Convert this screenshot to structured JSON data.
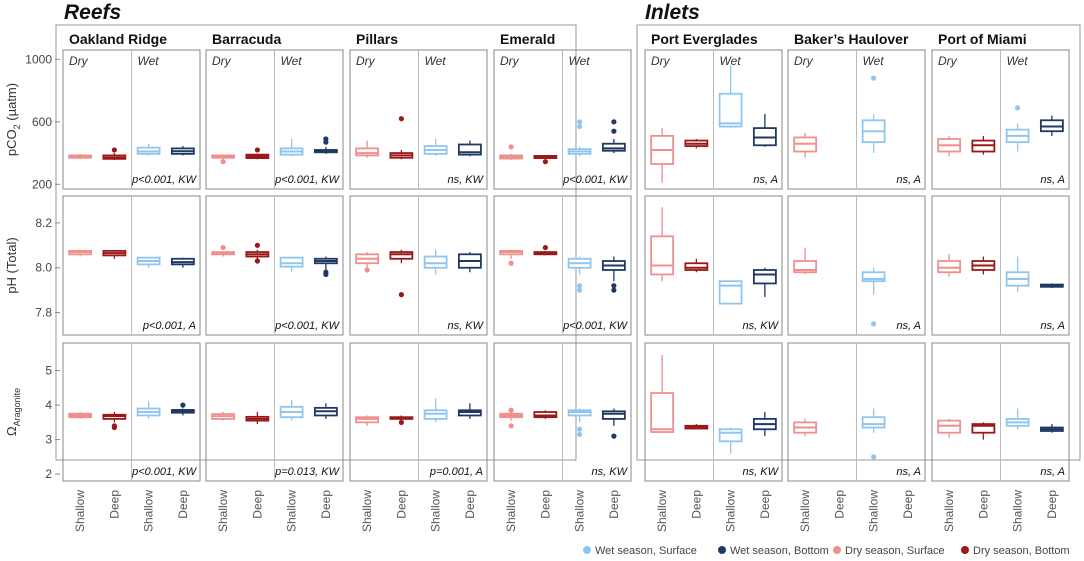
{
  "chart_data": {
    "type": "boxplot",
    "groups": [
      {
        "label": "Reefs",
        "sites": [
          "Oakland Ridge",
          "Barracuda",
          "Pillars",
          "Emerald"
        ]
      },
      {
        "label": "Inlets",
        "sites": [
          "Port Everglades",
          "Baker’s Haulover",
          "Port of Miami"
        ]
      }
    ],
    "seasons": [
      "Dry",
      "Wet"
    ],
    "categories": [
      "Shallow",
      "Deep",
      "Shallow",
      "Deep"
    ],
    "series": [
      {
        "name": "Wet season, Surface",
        "color": "#8fc6f0"
      },
      {
        "name": "Wet season, Bottom",
        "color": "#1f3864"
      },
      {
        "name": "Dry season, Surface",
        "color": "#f0908e"
      },
      {
        "name": "Dry season, Bottom",
        "color": "#9b1818"
      }
    ],
    "rows": [
      {
        "key": "pco2",
        "ylabel_main": "pCO",
        "ylabel_sub": "2",
        "ylabel_tail": " (µatm)",
        "ylim": [
          170,
          1060
        ],
        "ticks": [
          "200",
          "600",
          "1000"
        ],
        "tick_values": [
          200,
          600,
          1000
        ],
        "stats": [
          "p<0.001, KW",
          "p<0.001, KW",
          "ns, KW",
          "p<0.001, KW",
          "ns, A",
          "ns, A",
          "ns, A"
        ],
        "boxes": [
          [
            [
              360,
              370,
              378,
              385,
              395,
              []
            ],
            [
              355,
              363,
              372,
              385,
              400,
              [
                420
              ]
            ],
            [
              385,
              395,
              410,
              435,
              460,
              []
            ],
            [
              385,
              395,
              412,
              430,
              445,
              []
            ]
          ],
          [
            [
              360,
              370,
              378,
              385,
              390,
              [
                345
              ]
            ],
            [
              360,
              368,
              378,
              390,
              395,
              [
                420
              ]
            ],
            [
              380,
              390,
              410,
              430,
              490,
              []
            ],
            [
              395,
              405,
              415,
              420,
              440,
              [
                470,
                490
              ]
            ]
          ],
          [
            [
              370,
              385,
              400,
              430,
              480,
              []
            ],
            [
              360,
              370,
              385,
              400,
              420,
              [
                620
              ]
            ],
            [
              380,
              395,
              420,
              445,
              490,
              []
            ],
            [
              380,
              390,
              405,
              455,
              480,
              []
            ]
          ],
          [
            [
              355,
              365,
              375,
              385,
              395,
              [
                440
              ]
            ],
            [
              360,
              368,
              375,
              382,
              385,
              [
                345
              ]
            ],
            [
              380,
              395,
              410,
              425,
              440,
              [
                570,
                600
              ]
            ],
            [
              400,
              415,
              430,
              460,
              490,
              [
                540,
                600
              ]
            ]
          ],
          [
            [
              210,
              330,
              420,
              510,
              560,
              []
            ],
            [
              430,
              445,
              460,
              480,
              490,
              []
            ],
            [
              560,
              570,
              590,
              780,
              960,
              []
            ],
            [
              440,
              450,
              500,
              560,
              650,
              []
            ],
            null
          ],
          [
            [
              370,
              410,
              460,
              500,
              530,
              []
            ],
            null,
            [
              400,
              470,
              540,
              610,
              650,
              [
                880
              ]
            ],
            null
          ],
          [
            [
              380,
              410,
              450,
              490,
              510,
              []
            ],
            [
              390,
              410,
              450,
              480,
              510,
              []
            ],
            [
              410,
              470,
              510,
              550,
              590,
              [
                690
              ]
            ],
            [
              510,
              540,
              570,
              610,
              640,
              []
            ]
          ]
        ]
      },
      {
        "key": "ph",
        "ylabel_main": "pH (Total)",
        "ylabel_sub": "",
        "ylabel_tail": "",
        "ylim": [
          7.7,
          8.32
        ],
        "ticks": [
          "7.8",
          "8.0",
          "8.2"
        ],
        "tick_values": [
          7.8,
          8.0,
          8.2
        ],
        "stats": [
          "p<0.001, A",
          "p<0.001, KW",
          "ns, KW",
          "p<0.001, KW",
          "ns, KW",
          "ns, A",
          "ns, A"
        ],
        "boxes": [
          [
            [
              8.05,
              8.06,
              8.07,
              8.075,
              8.08,
              []
            ],
            [
              8.04,
              8.055,
              8.065,
              8.075,
              8.08,
              []
            ],
            [
              8.0,
              8.015,
              8.03,
              8.045,
              8.05,
              []
            ],
            [
              8.0,
              8.015,
              8.025,
              8.04,
              8.045,
              []
            ]
          ],
          [
            [
              8.05,
              8.06,
              8.065,
              8.07,
              8.07,
              [
                8.09
              ]
            ],
            [
              8.04,
              8.05,
              8.06,
              8.07,
              8.08,
              [
                8.03,
                8.1
              ]
            ],
            [
              7.98,
              8.005,
              8.02,
              8.045,
              8.05,
              []
            ],
            [
              7.99,
              8.02,
              8.03,
              8.04,
              8.05,
              [
                7.97,
                7.98
              ]
            ]
          ],
          [
            [
              8.0,
              8.02,
              8.04,
              8.06,
              8.07,
              [
                7.99
              ]
            ],
            [
              8.02,
              8.04,
              8.06,
              8.07,
              8.08,
              [
                7.88
              ]
            ],
            [
              7.97,
              8.0,
              8.02,
              8.05,
              8.08,
              []
            ],
            [
              7.98,
              8.0,
              8.03,
              8.06,
              8.07,
              []
            ]
          ],
          [
            [
              8.04,
              8.06,
              8.07,
              8.075,
              8.08,
              [
                8.02
              ]
            ],
            [
              8.055,
              8.06,
              8.065,
              8.07,
              8.075,
              [
                8.09
              ]
            ],
            [
              7.97,
              8.0,
              8.02,
              8.04,
              8.05,
              [
                7.9,
                7.92
              ]
            ],
            [
              7.94,
              7.99,
              8.01,
              8.03,
              8.05,
              [
                7.9,
                7.92
              ]
            ]
          ],
          [
            [
              7.94,
              7.97,
              8.01,
              8.14,
              8.27,
              []
            ],
            [
              7.98,
              7.99,
              8.0,
              8.02,
              8.04,
              []
            ],
            [
              7.9,
              7.84,
              7.92,
              7.94,
              7.94,
              []
            ],
            [
              7.87,
              7.93,
              7.97,
              7.99,
              8.0,
              []
            ]
          ],
          [
            [
              7.97,
              7.98,
              7.99,
              8.03,
              8.09,
              []
            ],
            null,
            [
              7.88,
              7.94,
              7.95,
              7.98,
              8.0,
              [
                7.75
              ]
            ],
            null
          ],
          [
            [
              7.96,
              7.98,
              8.0,
              8.03,
              8.06,
              []
            ],
            [
              7.97,
              7.99,
              8.01,
              8.03,
              8.05,
              []
            ],
            [
              7.89,
              7.92,
              7.95,
              7.98,
              8.05,
              []
            ],
            [
              7.91,
              7.915,
              7.92,
              7.925,
              7.93,
              []
            ]
          ]
        ]
      },
      {
        "key": "omega",
        "ylabel_main": "Ω",
        "ylabel_sub": "Aragonite",
        "ylabel_tail": "",
        "ylim": [
          1.8,
          5.8
        ],
        "ticks": [
          "2",
          "3",
          "4",
          "5"
        ],
        "tick_values": [
          2,
          3,
          4,
          5
        ],
        "stats": [
          "p<0.001, KW",
          "p=0.013, KW",
          "p=0.001, A",
          "ns, KW",
          "ns, KW",
          "ns, A",
          "ns, A"
        ],
        "boxes": [
          [
            [
              3.6,
              3.65,
              3.7,
              3.75,
              3.8,
              []
            ],
            [
              3.5,
              3.6,
              3.68,
              3.72,
              3.8,
              [
                3.4,
                3.35
              ]
            ],
            [
              3.6,
              3.7,
              3.8,
              3.9,
              4.1,
              []
            ],
            [
              3.7,
              3.78,
              3.82,
              3.86,
              3.9,
              [
                4.0
              ]
            ]
          ],
          [
            [
              3.55,
              3.6,
              3.68,
              3.74,
              3.8,
              []
            ],
            [
              3.45,
              3.55,
              3.6,
              3.66,
              3.8,
              []
            ],
            [
              3.55,
              3.65,
              3.8,
              3.95,
              4.15,
              []
            ],
            [
              3.6,
              3.7,
              3.82,
              3.92,
              4.05,
              []
            ]
          ],
          [
            [
              3.4,
              3.5,
              3.6,
              3.65,
              3.7,
              []
            ],
            [
              3.55,
              3.6,
              3.62,
              3.65,
              3.7,
              [
                3.5
              ]
            ],
            [
              3.5,
              3.6,
              3.75,
              3.85,
              4.2,
              []
            ],
            [
              3.6,
              3.7,
              3.8,
              3.85,
              4.05,
              []
            ]
          ],
          [
            [
              3.55,
              3.65,
              3.7,
              3.75,
              3.8,
              [
                3.4,
                3.85
              ]
            ],
            [
              3.6,
              3.65,
              3.7,
              3.8,
              3.85,
              []
            ],
            [
              3.5,
              3.7,
              3.8,
              3.85,
              3.9,
              [
                3.15,
                3.3
              ]
            ],
            [
              3.4,
              3.6,
              3.75,
              3.82,
              3.9,
              [
                3.1
              ]
            ]
          ],
          [
            [
              3.2,
              3.22,
              3.3,
              4.35,
              5.45,
              []
            ],
            [
              3.3,
              3.32,
              3.35,
              3.4,
              3.45,
              []
            ],
            [
              2.6,
              2.95,
              3.2,
              3.3,
              3.35,
              []
            ],
            [
              3.1,
              3.3,
              3.45,
              3.6,
              3.8,
              []
            ]
          ],
          [
            [
              3.1,
              3.2,
              3.35,
              3.5,
              3.6,
              []
            ],
            null,
            [
              3.2,
              3.35,
              3.45,
              3.65,
              3.9,
              [
                2.5
              ]
            ],
            null
          ],
          [
            [
              3.05,
              3.2,
              3.4,
              3.55,
              3.6,
              []
            ],
            [
              3.0,
              3.2,
              3.4,
              3.45,
              3.5,
              []
            ],
            [
              3.3,
              3.4,
              3.5,
              3.6,
              3.9,
              []
            ],
            [
              3.2,
              3.25,
              3.3,
              3.35,
              3.45,
              []
            ]
          ]
        ]
      }
    ]
  }
}
